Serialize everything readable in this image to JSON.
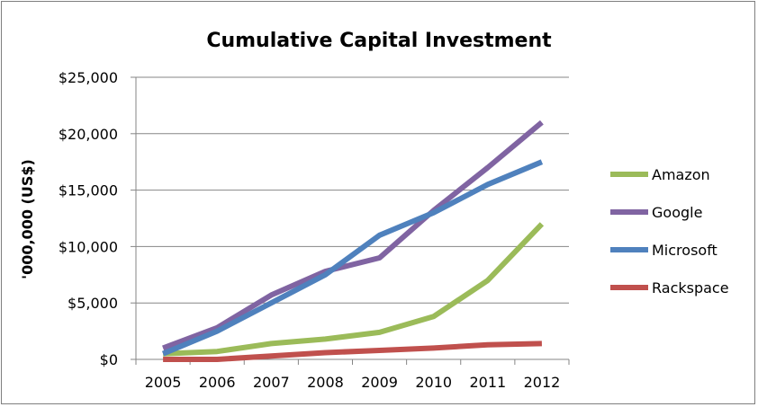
{
  "chart_data": {
    "type": "line",
    "title": "Cumulative Capital Investment",
    "xlabel": "",
    "ylabel": "'000,000 (US$)",
    "x": [
      "2005",
      "2006",
      "2007",
      "2008",
      "2009",
      "2010",
      "2011",
      "2012"
    ],
    "ylim": [
      0,
      25000
    ],
    "yticks": [
      0,
      5000,
      10000,
      15000,
      20000,
      25000
    ],
    "ytick_labels": [
      "$0",
      "$5,000",
      "$10,000",
      "$15,000",
      "$20,000",
      "$25,000"
    ],
    "grid": true,
    "legend_position": "right",
    "series": [
      {
        "name": "Amazon",
        "color": "#9bbb59",
        "values": [
          500,
          700,
          1400,
          1800,
          2400,
          3800,
          7000,
          12000
        ]
      },
      {
        "name": "Google",
        "color": "#8064a2",
        "values": [
          1000,
          2800,
          5700,
          7800,
          9000,
          13200,
          17000,
          21000
        ]
      },
      {
        "name": "Microsoft",
        "color": "#4f81bd",
        "values": [
          500,
          2500,
          5000,
          7500,
          11000,
          13000,
          15500,
          17500
        ]
      },
      {
        "name": "Rackspace",
        "color": "#c0504d",
        "values": [
          0,
          0,
          300,
          600,
          800,
          1000,
          1300,
          1400
        ]
      }
    ]
  }
}
